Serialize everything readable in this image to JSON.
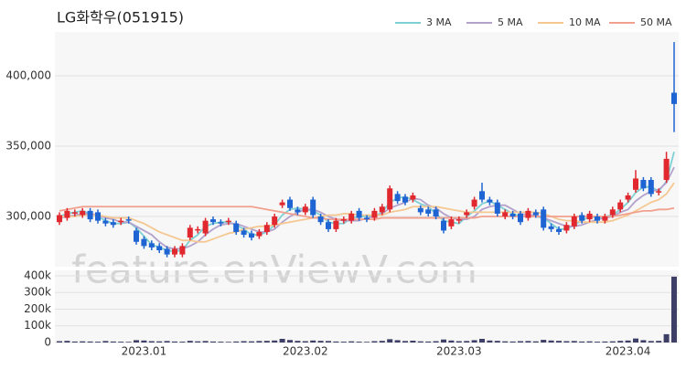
{
  "chart_data": {
    "type": "candlestick",
    "title": "LG화학우(051915)",
    "watermark": "feature.enViewV.com",
    "categories": [
      null,
      null,
      null,
      null,
      null,
      null,
      null,
      null,
      null,
      null,
      null,
      "2023.01",
      null,
      null,
      null,
      null,
      null,
      null,
      null,
      null,
      null,
      null,
      null,
      null,
      null,
      null,
      null,
      null,
      null,
      null,
      null,
      null,
      "2023.02",
      null,
      null,
      null,
      null,
      null,
      null,
      null,
      null,
      null,
      null,
      null,
      null,
      null,
      null,
      null,
      null,
      null,
      null,
      null,
      "2023.03",
      null,
      null,
      null,
      null,
      null,
      null,
      null,
      null,
      null,
      null,
      null,
      null,
      null,
      null,
      null,
      null,
      null,
      null,
      null,
      null,
      null,
      "2023.04",
      null,
      null,
      null,
      null,
      null,
      null
    ],
    "open": [
      296000,
      299000,
      302000,
      301000,
      304000,
      303000,
      297000,
      296000,
      296000,
      298000,
      290000,
      284000,
      281000,
      279000,
      277000,
      273000,
      273000,
      285000,
      290000,
      288000,
      298000,
      296000,
      296000,
      295000,
      290000,
      288000,
      286000,
      289000,
      294000,
      308000,
      312000,
      305000,
      303000,
      312000,
      300000,
      296000,
      291000,
      297000,
      297000,
      304000,
      299000,
      299000,
      303000,
      305000,
      316000,
      314000,
      312000,
      306000,
      305000,
      305000,
      297000,
      293000,
      297000,
      301000,
      307000,
      318000,
      312000,
      310000,
      300000,
      302000,
      302000,
      299000,
      303000,
      305000,
      293000,
      291000,
      290000,
      293000,
      301000,
      298000,
      300000,
      297000,
      301000,
      305000,
      312000,
      319000,
      326000,
      326000,
      317000,
      326000,
      388000
    ],
    "high": [
      303000,
      306000,
      305000,
      306000,
      306000,
      305000,
      299000,
      298000,
      299000,
      300000,
      292000,
      286000,
      283000,
      281000,
      279000,
      279000,
      281000,
      294000,
      293000,
      299000,
      300000,
      298000,
      299000,
      297000,
      292000,
      290000,
      291000,
      296000,
      302000,
      312000,
      314000,
      307000,
      309000,
      314000,
      302000,
      298000,
      299000,
      300000,
      304000,
      306000,
      301000,
      306000,
      309000,
      322000,
      318000,
      316000,
      317000,
      308000,
      307000,
      307000,
      299000,
      300000,
      300000,
      305000,
      314000,
      324000,
      314000,
      312000,
      305000,
      304000,
      304000,
      306000,
      305000,
      307000,
      295000,
      293000,
      296000,
      302000,
      303000,
      304000,
      302000,
      302000,
      307000,
      312000,
      317000,
      333000,
      328000,
      328000,
      320000,
      346000,
      424000
    ],
    "low": [
      294000,
      297000,
      300000,
      299000,
      296000,
      295000,
      293000,
      292000,
      294000,
      295000,
      280000,
      277000,
      276000,
      274000,
      271000,
      271000,
      271000,
      283000,
      288000,
      286000,
      294000,
      293000,
      294000,
      287000,
      285000,
      283000,
      284000,
      287000,
      292000,
      306000,
      304000,
      301000,
      301000,
      299000,
      294000,
      289000,
      289000,
      295000,
      295000,
      297000,
      296000,
      297000,
      301000,
      303000,
      309000,
      308000,
      310000,
      301000,
      300000,
      298000,
      288000,
      291000,
      295000,
      299000,
      305000,
      310000,
      308000,
      300000,
      298000,
      298000,
      294000,
      297000,
      299000,
      290000,
      289000,
      287000,
      288000,
      291000,
      295000,
      296000,
      295000,
      295000,
      299000,
      303000,
      310000,
      317000,
      318000,
      314000,
      315000,
      324000,
      360000
    ],
    "close": [
      301000,
      304000,
      303000,
      304000,
      298000,
      297000,
      295000,
      294000,
      297000,
      297000,
      282000,
      279000,
      278000,
      276000,
      273000,
      277000,
      279000,
      292000,
      291000,
      297000,
      296000,
      295000,
      297000,
      289000,
      287000,
      285000,
      289000,
      294000,
      300000,
      310000,
      306000,
      303000,
      307000,
      301000,
      296000,
      291000,
      297000,
      298000,
      302000,
      299000,
      298000,
      304000,
      307000,
      320000,
      311000,
      310000,
      315000,
      303000,
      302000,
      300000,
      290000,
      298000,
      298000,
      303000,
      312000,
      312000,
      310000,
      302000,
      303000,
      300000,
      296000,
      304000,
      301000,
      292000,
      291000,
      289000,
      294000,
      300000,
      297000,
      302000,
      297000,
      300000,
      305000,
      310000,
      315000,
      327000,
      320000,
      316000,
      318000,
      341000,
      380000
    ],
    "up_color": "#e0282e",
    "down_color": "#1e64d2",
    "ylim": [
      265600,
      431200
    ],
    "yticks": [
      {
        "value": 300000,
        "label": "300,000"
      },
      {
        "value": 350000,
        "label": "350,000"
      },
      {
        "value": 400000,
        "label": "400,000"
      }
    ],
    "grid": true,
    "series": [
      {
        "name": "3 MA",
        "color": "#7fd0d4",
        "values": [
          300000,
          302000,
          303000,
          304000,
          302000,
          300000,
          297000,
          295000,
          295000,
          296000,
          292000,
          286000,
          280000,
          278000,
          276000,
          275000,
          276000,
          283000,
          287000,
          293000,
          295000,
          296000,
          296000,
          294000,
          291000,
          287000,
          287000,
          289000,
          294000,
          301000,
          305000,
          306000,
          305000,
          304000,
          301000,
          296000,
          295000,
          295000,
          299000,
          300000,
          300000,
          300000,
          303000,
          310000,
          313000,
          314000,
          312000,
          309000,
          307000,
          302000,
          297000,
          296000,
          295000,
          300000,
          304000,
          309000,
          311000,
          308000,
          305000,
          302000,
          300000,
          300000,
          300000,
          299000,
          295000,
          291000,
          291000,
          294000,
          297000,
          300000,
          299000,
          300000,
          301000,
          305000,
          310000,
          317000,
          321000,
          321000,
          318000,
          325000,
          346000
        ]
      },
      {
        "name": "5 MA",
        "color": "#b3a2cc",
        "values": [
          299000,
          300000,
          301000,
          302000,
          302000,
          301000,
          299000,
          298000,
          296000,
          296000,
          293000,
          290000,
          287000,
          282000,
          278000,
          277000,
          277000,
          279000,
          282000,
          287000,
          291000,
          294000,
          295000,
          295000,
          293000,
          291000,
          289000,
          289000,
          291000,
          296000,
          300000,
          303000,
          305000,
          305000,
          303000,
          300000,
          298000,
          297000,
          297000,
          297000,
          299000,
          300000,
          302000,
          306000,
          308000,
          310000,
          313000,
          312000,
          308000,
          306000,
          302000,
          299000,
          298000,
          298000,
          300000,
          305000,
          307000,
          308000,
          308000,
          305000,
          302000,
          301000,
          301000,
          299000,
          297000,
          295000,
          293000,
          293000,
          294000,
          296000,
          298000,
          299000,
          300000,
          303000,
          305000,
          311000,
          315000,
          318000,
          319000,
          324000,
          335000
        ]
      },
      {
        "name": "10 MA",
        "color": "#f5c892",
        "values": [
          300000,
          300000,
          300000,
          301000,
          301000,
          301000,
          300000,
          299000,
          299000,
          299000,
          297000,
          295000,
          292000,
          289000,
          287000,
          285000,
          283000,
          283000,
          282000,
          282000,
          284000,
          286000,
          288000,
          289000,
          291000,
          292000,
          293000,
          293000,
          294000,
          295000,
          296000,
          297000,
          298000,
          299000,
          300000,
          301000,
          301000,
          302000,
          302000,
          301000,
          301000,
          301000,
          301000,
          303000,
          304000,
          305000,
          307000,
          307000,
          307000,
          307000,
          306000,
          305000,
          304000,
          303000,
          303000,
          303000,
          303000,
          303000,
          303000,
          303000,
          303000,
          303000,
          303000,
          302000,
          300000,
          298000,
          297000,
          297000,
          296000,
          296000,
          296000,
          296000,
          297000,
          299000,
          301000,
          304000,
          307000,
          310000,
          312000,
          316000,
          324000
        ]
      },
      {
        "name": "50 MA",
        "color": "#f2a08e",
        "values": [
          304000,
          305000,
          306000,
          307000,
          307000,
          307000,
          307000,
          307000,
          307000,
          307000,
          307000,
          307000,
          307000,
          307000,
          307000,
          307000,
          307000,
          307000,
          307000,
          307000,
          307000,
          307000,
          307000,
          307000,
          307000,
          307000,
          306000,
          305000,
          304000,
          303000,
          302000,
          301000,
          300000,
          299000,
          299000,
          298000,
          298000,
          298000,
          298000,
          298000,
          298000,
          298000,
          299000,
          299000,
          299000,
          299000,
          299000,
          299000,
          299000,
          299000,
          299000,
          299000,
          299000,
          299000,
          299000,
          300000,
          300000,
          300000,
          300000,
          300000,
          300000,
          300000,
          300000,
          300000,
          300000,
          300000,
          300000,
          300000,
          300000,
          300000,
          300000,
          300000,
          300000,
          301000,
          302000,
          303000,
          304000,
          304000,
          305000,
          305000,
          306000
        ]
      }
    ],
    "volume": {
      "color": "#3d3f66",
      "ylim": [
        0,
        421900
      ],
      "yticks": [
        0,
        {
          "value": 100000,
          "label": "100k"
        },
        {
          "value": 200000,
          "label": "200k"
        },
        {
          "value": 300000,
          "label": "300k"
        },
        {
          "value": 400000,
          "label": "400k"
        }
      ],
      "values": [
        8000,
        10000,
        6000,
        7000,
        6000,
        5000,
        9000,
        6000,
        5000,
        4000,
        14000,
        12000,
        8000,
        7000,
        9000,
        6000,
        5000,
        10000,
        7000,
        9000,
        6000,
        5000,
        4000,
        6000,
        8000,
        7000,
        9000,
        10000,
        12000,
        22000,
        15000,
        10000,
        8000,
        12000,
        10000,
        9000,
        6000,
        5000,
        7000,
        5000,
        4000,
        8000,
        10000,
        20000,
        14000,
        9000,
        11000,
        7000,
        6000,
        8000,
        18000,
        12000,
        8000,
        9000,
        14000,
        22000,
        12000,
        10000,
        7000,
        6000,
        8000,
        9000,
        7000,
        16000,
        12000,
        10000,
        8000,
        9000,
        6000,
        7000,
        5000,
        6000,
        7000,
        10000,
        12000,
        24000,
        14000,
        9000,
        10000,
        50000,
        395000
      ]
    }
  }
}
